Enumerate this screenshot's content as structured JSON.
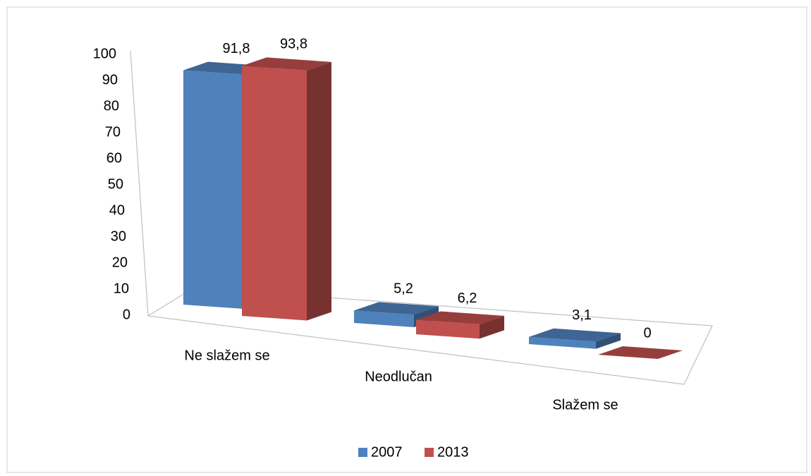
{
  "chart_data": {
    "type": "bar3d",
    "categories": [
      "Ne slažem se",
      "Neodlučan",
      "Slažem se"
    ],
    "series": [
      {
        "name": "2007",
        "color": "#4f81bd",
        "values": [
          91.8,
          5.2,
          3.1
        ],
        "value_labels": [
          "91,8",
          "5,2",
          "3,1"
        ]
      },
      {
        "name": "2013",
        "color": "#c0504d",
        "values": [
          93.8,
          6.2,
          0
        ],
        "value_labels": [
          "93,8",
          "6,2",
          "0"
        ]
      }
    ],
    "ylim": [
      0,
      100
    ],
    "yticks": [
      0,
      10,
      20,
      30,
      40,
      50,
      60,
      70,
      80,
      90,
      100
    ],
    "legend": "bottom"
  }
}
